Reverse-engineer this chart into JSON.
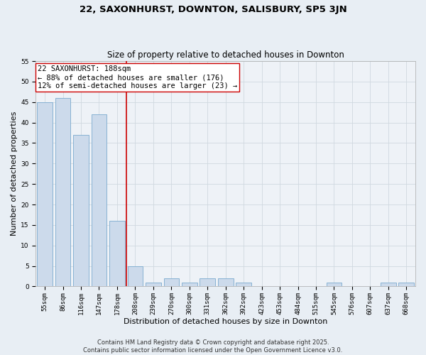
{
  "title": "22, SAXONHURST, DOWNTON, SALISBURY, SP5 3JN",
  "subtitle": "Size of property relative to detached houses in Downton",
  "xlabel": "Distribution of detached houses by size in Downton",
  "ylabel": "Number of detached properties",
  "categories": [
    "55sqm",
    "86sqm",
    "116sqm",
    "147sqm",
    "178sqm",
    "208sqm",
    "239sqm",
    "270sqm",
    "300sqm",
    "331sqm",
    "362sqm",
    "392sqm",
    "423sqm",
    "453sqm",
    "484sqm",
    "515sqm",
    "545sqm",
    "576sqm",
    "607sqm",
    "637sqm",
    "668sqm"
  ],
  "values": [
    45,
    46,
    37,
    42,
    16,
    5,
    1,
    2,
    1,
    2,
    2,
    1,
    0,
    0,
    0,
    0,
    1,
    0,
    0,
    1,
    1
  ],
  "bar_color": "#ccdaeb",
  "bar_edge_color": "#7aaace",
  "bar_edge_width": 0.6,
  "vline_index": 4,
  "vline_color": "#cc0000",
  "vline_linewidth": 1.2,
  "annotation_text": "22 SAXONHURST: 188sqm\n← 88% of detached houses are smaller (176)\n12% of semi-detached houses are larger (23) →",
  "annotation_box_edgecolor": "#cc0000",
  "annotation_box_facecolor": "#ffffff",
  "annotation_fontsize": 7.5,
  "ylim": [
    0,
    55
  ],
  "yticks": [
    0,
    5,
    10,
    15,
    20,
    25,
    30,
    35,
    40,
    45,
    50,
    55
  ],
  "grid_color": "#d0d8e0",
  "background_color": "#e8eef4",
  "plot_background": "#eef2f7",
  "title_fontsize": 9.5,
  "subtitle_fontsize": 8.5,
  "xlabel_fontsize": 8,
  "ylabel_fontsize": 8,
  "tick_fontsize": 6.5,
  "footer_line1": "Contains HM Land Registry data © Crown copyright and database right 2025.",
  "footer_line2": "Contains public sector information licensed under the Open Government Licence v3.0.",
  "footer_fontsize": 6
}
